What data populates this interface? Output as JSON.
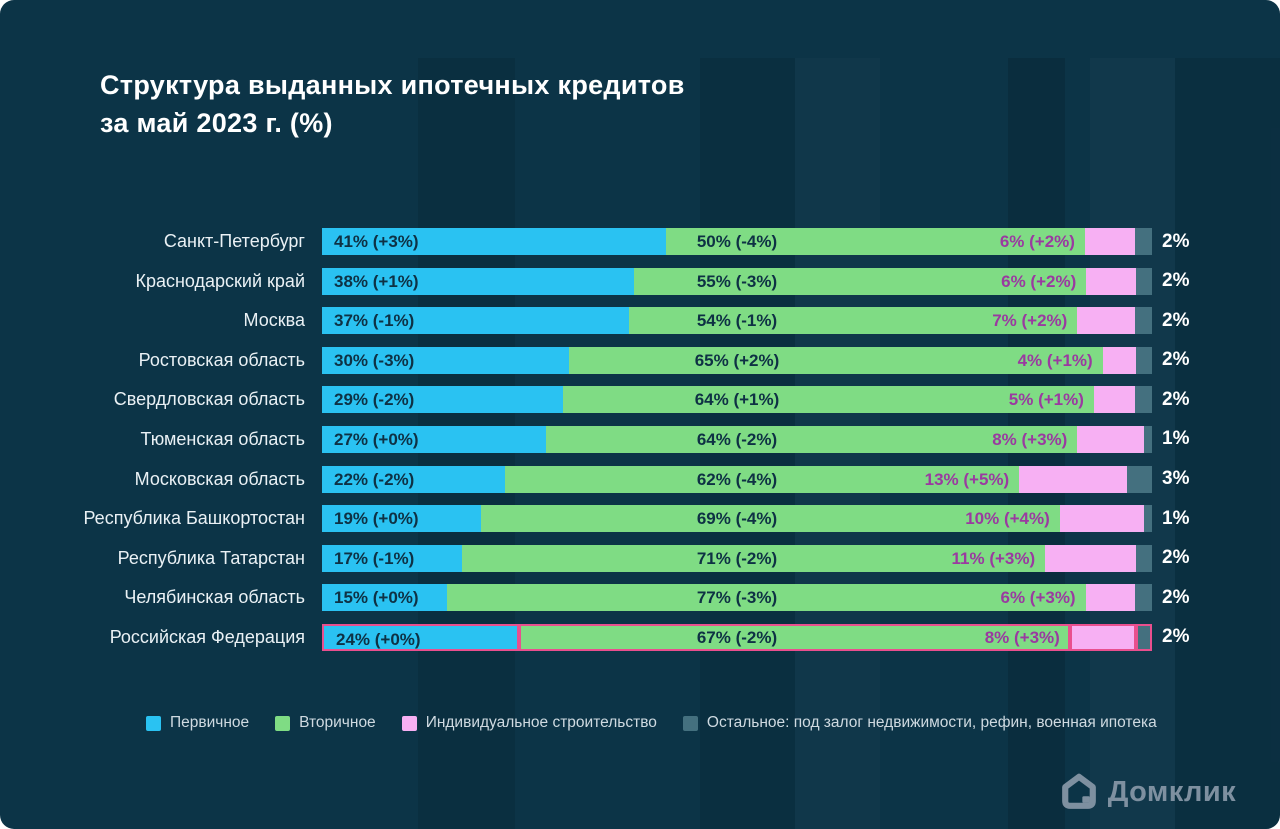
{
  "page": {
    "title_line1": "Структура выданных ипотечных кредитов",
    "title_line2": "за май 2023 г. (%)"
  },
  "colors": {
    "background": "#0C3447",
    "primary": "#2AC2F2",
    "secondary": "#7FDC84",
    "individual": "#F7B0F3",
    "other": "#44707F",
    "highlight_border": "#E94F8E",
    "bar_text": "#0E3144",
    "individual_label_text": "#9A3AA0",
    "outside_label_text": "#FFFFFF",
    "region_label_text": "#EAF1F5",
    "legend_text": "#CFDAE1",
    "logo_color": "#7E90A0"
  },
  "chart_data": {
    "type": "bar",
    "stacked": true,
    "orientation": "horizontal",
    "unit": "%",
    "title": "Структура выданных ипотечных кредитов за май 2023 г. (%)",
    "series_names": [
      "Первичное",
      "Вторичное",
      "Индивидуальное строительство",
      "Остальное"
    ],
    "regions": [
      {
        "name": "Санкт-Петербург",
        "primary": 41,
        "secondary": 50,
        "individual": 6,
        "other": 2,
        "primary_label": "41% (+3%)",
        "secondary_label": "50% (-4%)",
        "individual_label": "6% (+2%)",
        "other_label": "2%",
        "highlight": false
      },
      {
        "name": "Краснодарский край",
        "primary": 38,
        "secondary": 55,
        "individual": 6,
        "other": 2,
        "primary_label": "38% (+1%)",
        "secondary_label": "55% (-3%)",
        "individual_label": "6% (+2%)",
        "other_label": "2%",
        "highlight": false
      },
      {
        "name": "Москва",
        "primary": 37,
        "secondary": 54,
        "individual": 7,
        "other": 2,
        "primary_label": "37% (-1%)",
        "secondary_label": "54% (-1%)",
        "individual_label": "7% (+2%)",
        "other_label": "2%",
        "highlight": false
      },
      {
        "name": "Ростовская область",
        "primary": 30,
        "secondary": 65,
        "individual": 4,
        "other": 2,
        "primary_label": "30% (-3%)",
        "secondary_label": "65% (+2%)",
        "individual_label": "4% (+1%)",
        "other_label": "2%",
        "highlight": false
      },
      {
        "name": "Свердловская область",
        "primary": 29,
        "secondary": 64,
        "individual": 5,
        "other": 2,
        "primary_label": "29% (-2%)",
        "secondary_label": "64% (+1%)",
        "individual_label": "5% (+1%)",
        "other_label": "2%",
        "highlight": false
      },
      {
        "name": "Тюменская область",
        "primary": 27,
        "secondary": 64,
        "individual": 8,
        "other": 1,
        "primary_label": "27% (+0%)",
        "secondary_label": "64% (-2%)",
        "individual_label": "8% (+3%)",
        "other_label": "1%",
        "highlight": false
      },
      {
        "name": "Московская область",
        "primary": 22,
        "secondary": 62,
        "individual": 13,
        "other": 3,
        "primary_label": "22% (-2%)",
        "secondary_label": "62% (-4%)",
        "individual_label": "13% (+5%)",
        "other_label": "3%",
        "highlight": false
      },
      {
        "name": "Республика Башкортостан",
        "primary": 19,
        "secondary": 69,
        "individual": 10,
        "other": 1,
        "primary_label": "19% (+0%)",
        "secondary_label": "69% (-4%)",
        "individual_label": "10% (+4%)",
        "other_label": "1%",
        "highlight": false
      },
      {
        "name": "Республика Татарстан",
        "primary": 17,
        "secondary": 71,
        "individual": 11,
        "other": 2,
        "primary_label": "17% (-1%)",
        "secondary_label": "71% (-2%)",
        "individual_label": "11% (+3%)",
        "other_label": "2%",
        "highlight": false
      },
      {
        "name": "Челябинская область",
        "primary": 15,
        "secondary": 77,
        "individual": 6,
        "other": 2,
        "primary_label": "15% (+0%)",
        "secondary_label": "77% (-3%)",
        "individual_label": "6% (+3%)",
        "other_label": "2%",
        "highlight": false
      },
      {
        "name": "Российская Федерация",
        "primary": 24,
        "secondary": 67,
        "individual": 8,
        "other": 2,
        "primary_label": "24% (+0%)",
        "secondary_label": "67% (-2%)",
        "individual_label": "8% (+3%)",
        "other_label": "2%",
        "highlight": true
      }
    ]
  },
  "legend": {
    "items": [
      {
        "label": "Первичное",
        "color_key": "primary"
      },
      {
        "label": "Вторичное",
        "color_key": "secondary"
      },
      {
        "label": "Индивидуальное строительство",
        "color_key": "individual"
      },
      {
        "label": "Остальное: под залог недвижимости, рефин, военная ипотека",
        "color_key": "other"
      }
    ]
  },
  "logo": {
    "text": "Домклик"
  }
}
